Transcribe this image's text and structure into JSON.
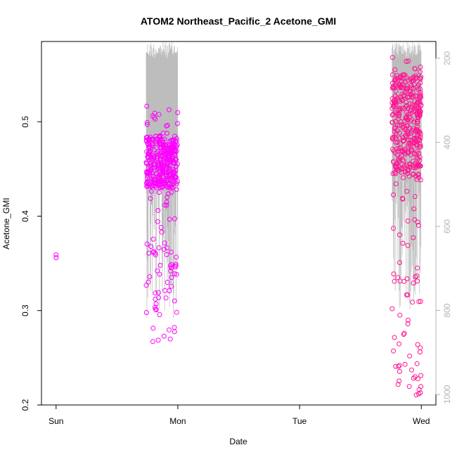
{
  "chart_data": {
    "type": "scatter",
    "title": "ATOM2 Northeast_Pacific_2 Acetone_GMI",
    "xlabel": "Date",
    "ylabel": "Acetone_GMI",
    "x_ticks": [
      "Sun",
      "Mon",
      "Tue",
      "Wed"
    ],
    "x_unit": "days from Sun 00:00",
    "xlim": [
      -0.12,
      3.12
    ],
    "ylim": [
      0.2,
      0.585
    ],
    "y_ticks": [
      0.2,
      0.3,
      0.4,
      0.5
    ],
    "y_tick_labels": [
      "0.2",
      "0.3",
      "0.4",
      "0.5"
    ],
    "right_axis": {
      "label": "",
      "ticks": [
        200,
        400,
        600,
        800,
        1000
      ],
      "tick_labels": [
        "200",
        "400",
        "600",
        "800",
        "1000"
      ],
      "range_top_to_bottom": [
        160,
        1025
      ],
      "color": "#b3b3b3"
    },
    "grid": false,
    "legend": "none",
    "series": [
      {
        "name": "",
        "color": "#ff00ff",
        "clusters": [
          {
            "x": [
              0.0,
              0.0
            ],
            "y": [
              0.356,
              0.359
            ]
          },
          {
            "x_range": [
              0.74,
              1.0
            ],
            "y_range": [
              0.267,
              0.517
            ],
            "dense_top": 0.485,
            "dense_bottom": 0.43
          }
        ]
      },
      {
        "name": "",
        "color": "#ff1493",
        "clusters": [
          {
            "x_range": [
              2.76,
              3.0
            ],
            "y_range": [
              0.21,
              0.572
            ],
            "dense_top": 0.55,
            "dense_bottom": 0.44
          }
        ]
      }
    ],
    "pressure_line": {
      "color": "#bdbdbd",
      "segments": [
        {
          "x_range": [
            0.74,
            1.0
          ],
          "p_range": [
            160,
            820
          ]
        },
        {
          "x_range": [
            2.76,
            3.0
          ],
          "p_range": [
            160,
            800
          ]
        }
      ]
    }
  }
}
